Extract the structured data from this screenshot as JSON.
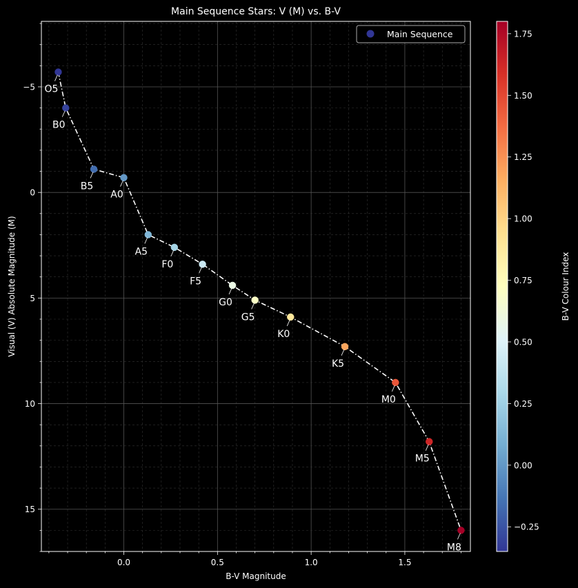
{
  "chart_data": {
    "type": "scatter",
    "title": "Main Sequence Stars: V (M) vs. B-V",
    "xlabel": "B-V Magnitude",
    "ylabel": "Visual (V) Absolute Magnitude (M)",
    "xlim": [
      -0.44,
      1.85
    ],
    "ylim": [
      17.0,
      -8.1
    ],
    "y_inverted": true,
    "x_ticks": [
      0.0,
      0.5,
      1.0,
      1.5
    ],
    "x_tick_labels": [
      "0.0",
      "0.5",
      "1.0",
      "1.5"
    ],
    "y_ticks": [
      -5,
      0,
      5,
      10,
      15
    ],
    "y_tick_labels": [
      "−5",
      "0",
      "5",
      "10",
      "15"
    ],
    "grid": true,
    "legend": {
      "position": "top-right",
      "entries": [
        "Main Sequence"
      ]
    },
    "series": [
      {
        "name": "Main Sequence",
        "points": [
          {
            "label": "O5",
            "x": -0.35,
            "y": -5.7
          },
          {
            "label": "B0",
            "x": -0.31,
            "y": -4.0
          },
          {
            "label": "B5",
            "x": -0.16,
            "y": -1.1
          },
          {
            "label": "A0",
            "x": 0.0,
            "y": -0.7
          },
          {
            "label": "A5",
            "x": 0.13,
            "y": 2.0
          },
          {
            "label": "F0",
            "x": 0.27,
            "y": 2.6
          },
          {
            "label": "F5",
            "x": 0.42,
            "y": 3.4
          },
          {
            "label": "G0",
            "x": 0.58,
            "y": 4.4
          },
          {
            "label": "G5",
            "x": 0.7,
            "y": 5.1
          },
          {
            "label": "K0",
            "x": 0.89,
            "y": 5.9
          },
          {
            "label": "K5",
            "x": 1.18,
            "y": 7.3
          },
          {
            "label": "M0",
            "x": 1.45,
            "y": 9.0
          },
          {
            "label": "M5",
            "x": 1.63,
            "y": 11.8
          },
          {
            "label": "M8",
            "x": 1.8,
            "y": 16.0
          }
        ]
      }
    ],
    "colorbar": {
      "label": "B-V Colour Index",
      "range": [
        -0.35,
        1.8
      ],
      "ticks": [
        -0.25,
        0.0,
        0.25,
        0.5,
        0.75,
        1.0,
        1.25,
        1.5,
        1.75
      ],
      "tick_labels": [
        "−0.25",
        "0.00",
        "0.25",
        "0.50",
        "0.75",
        "1.00",
        "1.25",
        "1.50",
        "1.75"
      ],
      "colormap": "RdYlBu_r"
    },
    "colors": {
      "background": "#000000",
      "line": "#ffffff",
      "colormap_stops": [
        "#313695",
        "#4575b4",
        "#74add1",
        "#abd9e9",
        "#e0f3f8",
        "#ffffbf",
        "#fee090",
        "#fdae61",
        "#f46d43",
        "#d73027",
        "#a50026"
      ]
    }
  }
}
